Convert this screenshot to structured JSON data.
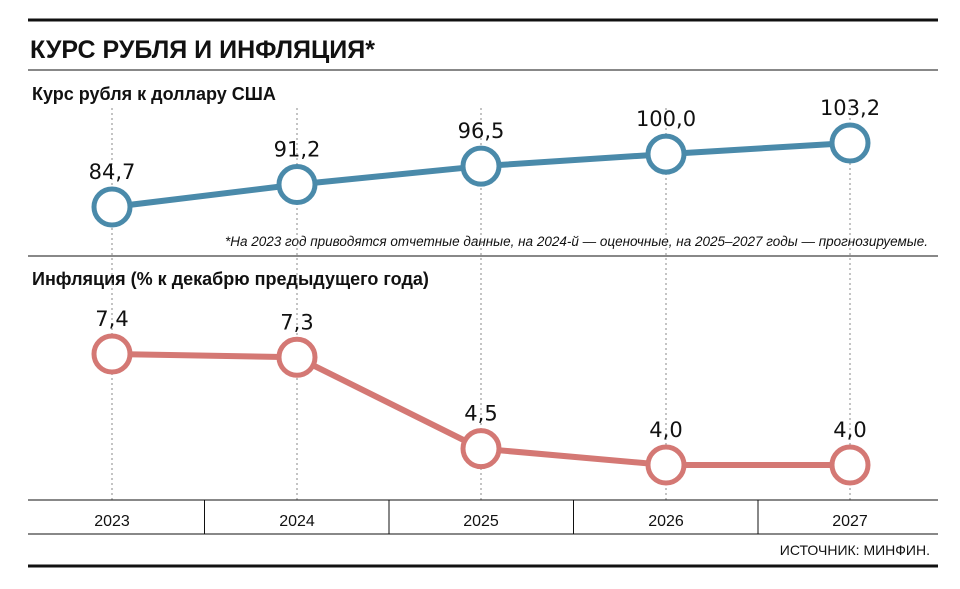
{
  "title": "КУРС РУБЛЯ И ИНФЛЯЦИЯ*",
  "footnote": "*На 2023 год приводятся отчетные данные, на 2024-й — оценочные, на 2025–2027 годы — прогнозируемые.",
  "source": "ИСТОЧНИК: МИНФИН.",
  "chart_data": [
    {
      "type": "line",
      "title": "Курс рубля к доллару США",
      "x": [
        "2023",
        "2024",
        "2025",
        "2026",
        "2027"
      ],
      "series": [
        {
          "values": [
            84.7,
            91.2,
            96.5,
            100.0,
            103.2
          ],
          "labels": [
            "84,7",
            "91,2",
            "96,5",
            "100,0",
            "103,2"
          ],
          "color": "#4a8aaa"
        }
      ]
    },
    {
      "type": "line",
      "title": "Инфляция (% к декабрю предыдущего года)",
      "x": [
        "2023",
        "2024",
        "2025",
        "2026",
        "2027"
      ],
      "series": [
        {
          "values": [
            7.4,
            7.3,
            4.5,
            4.0,
            4.0
          ],
          "labels": [
            "7,4",
            "7,3",
            "4,5",
            "4,0",
            "4,0"
          ],
          "color": "#d47874"
        }
      ]
    }
  ]
}
